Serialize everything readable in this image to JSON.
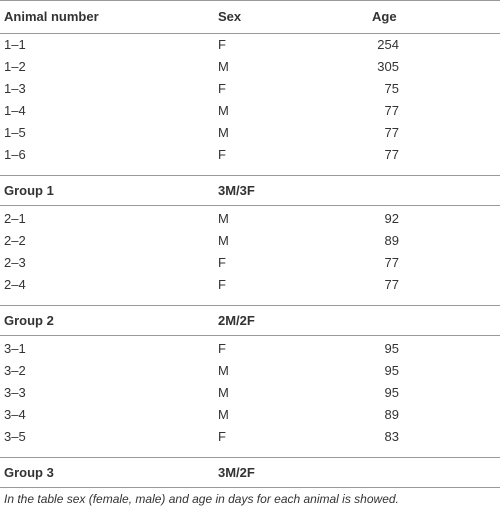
{
  "table": {
    "header": [
      "Animal number",
      "Sex",
      "Age"
    ],
    "sections": [
      {
        "rows": [
          [
            "1–1",
            "F",
            254
          ],
          [
            "1–2",
            "M",
            305
          ],
          [
            "1–3",
            "F",
            75
          ],
          [
            "1–4",
            "M",
            77
          ],
          [
            "1–5",
            "M",
            77
          ],
          [
            "1–6",
            "F",
            77
          ]
        ],
        "group": {
          "label": "Group 1",
          "sex": "3M/3F"
        }
      },
      {
        "rows": [
          [
            "2–1",
            "M",
            92
          ],
          [
            "2–2",
            "M",
            89
          ],
          [
            "2–3",
            "F",
            77
          ],
          [
            "2–4",
            "F",
            77
          ]
        ],
        "group": {
          "label": "Group 2",
          "sex": "2M/2F"
        }
      },
      {
        "rows": [
          [
            "3–1",
            "F",
            95
          ],
          [
            "3–2",
            "M",
            95
          ],
          [
            "3–3",
            "M",
            95
          ],
          [
            "3–4",
            "M",
            89
          ],
          [
            "3–5",
            "F",
            83
          ]
        ],
        "group": {
          "label": "Group 3",
          "sex": "3M/2F"
        }
      }
    ]
  },
  "footnote": "In the table sex (female, male) and age in days for each animal is showed."
}
